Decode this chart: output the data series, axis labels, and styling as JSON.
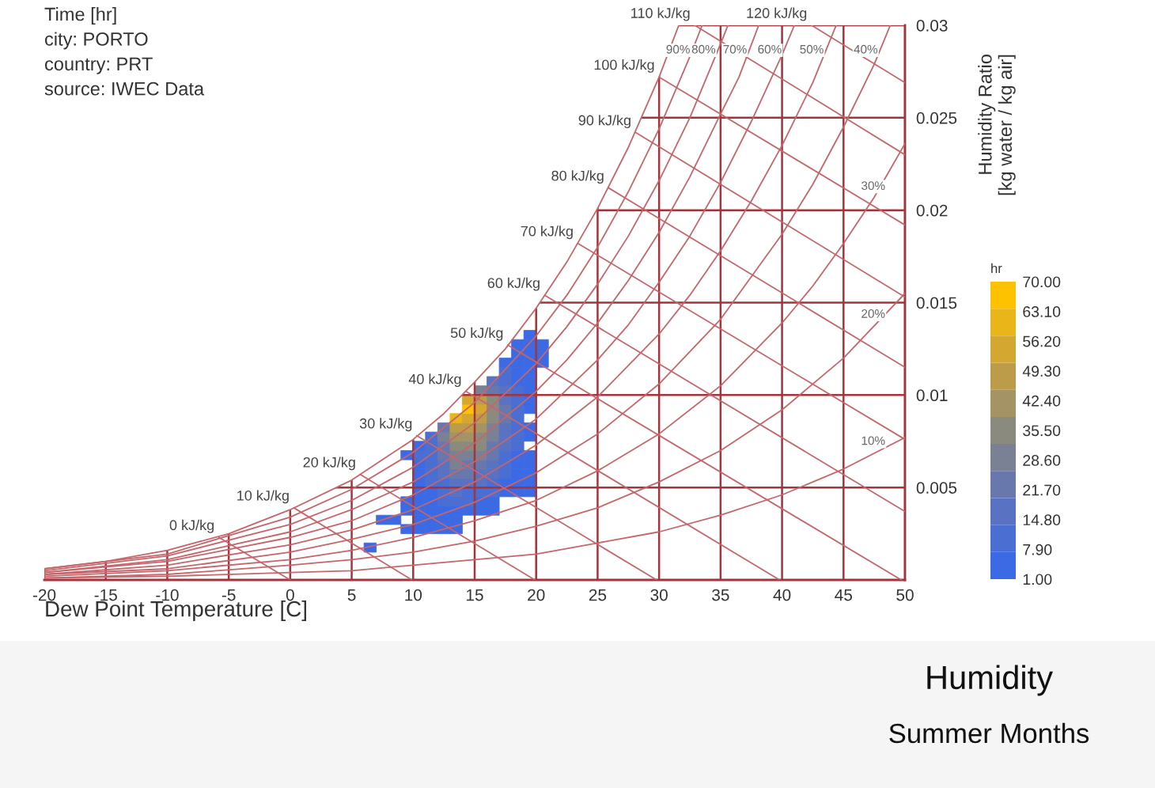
{
  "chart_data": {
    "type": "line",
    "title": "Humidity",
    "subtitle": "Summer Months",
    "xlabel": "Dew Point Temperature [C]",
    "ylabel": "Humidity Ratio\n[kg water / kg air]",
    "clabel": "hr",
    "annotations": [
      "Time [hr]",
      "city: PORTO",
      "country: PRT",
      "source: IWEC Data"
    ],
    "xlim": [
      -20,
      50
    ],
    "xticks": [
      -20,
      -15,
      -10,
      -5,
      0,
      5,
      10,
      15,
      20,
      25,
      30,
      35,
      40,
      45,
      50
    ],
    "ylim": [
      0,
      0.03
    ],
    "yticks": [
      0.005,
      0.01,
      0.015,
      0.02,
      0.025,
      0.03
    ],
    "clim": [
      1,
      70
    ],
    "cticks": [
      {
        "value": 1,
        "label": "1.00"
      },
      {
        "value": 7.9,
        "label": "7.90"
      },
      {
        "value": 14.8,
        "label": "14.80"
      },
      {
        "value": 21.7,
        "label": "21.70"
      },
      {
        "value": 28.6,
        "label": "28.60"
      },
      {
        "value": 35.5,
        "label": "35.50"
      },
      {
        "value": 42.4,
        "label": "42.40"
      },
      {
        "value": 49.3,
        "label": "49.30"
      },
      {
        "value": 56.2,
        "label": "56.20"
      },
      {
        "value": 63.1,
        "label": "63.10"
      },
      {
        "value": 70,
        "label": "70.00"
      }
    ],
    "grid": true,
    "series": [
      {
        "type": "scatter",
        "marker": "square",
        "x": [
          6.5,
          7.5,
          8.5,
          9.5,
          9.5,
          9.5,
          9.5,
          10.5,
          10.5,
          10.5,
          10.5,
          10.5,
          10.5,
          10.5,
          10.5,
          10.5,
          10.5,
          11.5,
          11.5,
          11.5,
          11.5,
          11.5,
          11.5,
          11.5,
          11.5,
          11.5,
          11.5,
          11.5,
          12.5,
          12.5,
          12.5,
          12.5,
          12.5,
          12.5,
          12.5,
          12.5,
          12.5,
          12.5,
          12.5,
          12.5,
          13.5,
          13.5,
          13.5,
          13.5,
          13.5,
          13.5,
          13.5,
          13.5,
          13.5,
          13.5,
          13.5,
          13.5,
          13.5,
          14.5,
          14.5,
          14.5,
          14.5,
          14.5,
          14.5,
          14.5,
          14.5,
          14.5,
          14.5,
          14.5,
          14.5,
          14.5,
          15.5,
          15.5,
          15.5,
          15.5,
          15.5,
          15.5,
          15.5,
          15.5,
          15.5,
          15.5,
          15.5,
          15.5,
          15.5,
          15.5,
          16.5,
          16.5,
          16.5,
          16.5,
          16.5,
          16.5,
          16.5,
          16.5,
          16.5,
          16.5,
          16.5,
          16.5,
          16.5,
          16.5,
          16.5,
          17.5,
          17.5,
          17.5,
          17.5,
          17.5,
          17.5,
          17.5,
          17.5,
          17.5,
          17.5,
          17.5,
          17.5,
          17.5,
          17.5,
          17.5,
          18.5,
          18.5,
          18.5,
          18.5,
          18.5,
          18.5,
          18.5,
          18.5,
          18.5,
          18.5,
          18.5,
          18.5,
          18.5,
          18.5,
          18.5,
          18.5,
          18.5,
          19.5,
          19.5,
          19.5,
          19.5,
          19.5,
          19.5,
          19.5,
          19.5,
          19.5,
          19.5,
          19.5,
          19.5,
          19.5,
          19.5,
          19.5,
          19.5,
          20.5,
          20.5,
          20.5
        ],
        "values": [
          0.00175,
          0.00325,
          0.00325,
          0.00275,
          0.00375,
          0.00425,
          0.00675,
          0.00275,
          0.00325,
          0.00375,
          0.00425,
          0.00475,
          0.00525,
          0.00575,
          0.00625,
          0.00675,
          0.00725,
          0.00275,
          0.00325,
          0.00375,
          0.00425,
          0.00475,
          0.00525,
          0.00575,
          0.00625,
          0.00675,
          0.00725,
          0.00775,
          0.00275,
          0.00325,
          0.00375,
          0.00425,
          0.00475,
          0.00525,
          0.00575,
          0.00625,
          0.00675,
          0.00725,
          0.00775,
          0.00825,
          0.00275,
          0.00325,
          0.00375,
          0.00425,
          0.00475,
          0.00525,
          0.00575,
          0.00625,
          0.00675,
          0.00725,
          0.00775,
          0.00825,
          0.00875,
          0.00375,
          0.00425,
          0.00475,
          0.00525,
          0.00575,
          0.00625,
          0.00675,
          0.00725,
          0.00775,
          0.00825,
          0.00875,
          0.00925,
          0.00975,
          0.00375,
          0.00425,
          0.00475,
          0.00525,
          0.00575,
          0.00625,
          0.00675,
          0.00725,
          0.00775,
          0.00825,
          0.00875,
          0.00925,
          0.00975,
          0.01025,
          0.00375,
          0.00425,
          0.00475,
          0.00525,
          0.00575,
          0.00625,
          0.00675,
          0.00725,
          0.00775,
          0.00825,
          0.00875,
          0.00925,
          0.00975,
          0.01025,
          0.01075,
          0.00475,
          0.00525,
          0.00575,
          0.00625,
          0.00675,
          0.00725,
          0.00775,
          0.00825,
          0.00875,
          0.00925,
          0.00975,
          0.01025,
          0.01075,
          0.01125,
          0.01175,
          0.00475,
          0.00525,
          0.00575,
          0.00625,
          0.00675,
          0.00725,
          0.00775,
          0.00825,
          0.00875,
          0.00925,
          0.00975,
          0.01025,
          0.01075,
          0.01125,
          0.01175,
          0.01225,
          0.01275,
          0.00475,
          0.00525,
          0.00575,
          0.00625,
          0.00675,
          0.00775,
          0.00825,
          0.00925,
          0.00975,
          0.01025,
          0.01075,
          0.01125,
          0.01175,
          0.01225,
          0.01275,
          0.01325,
          0.01175,
          0.01225,
          0.01275
        ],
        "cvalues": [
          2,
          2,
          2,
          2,
          2,
          2,
          3,
          2,
          3,
          3,
          4,
          5,
          6,
          6,
          7,
          8,
          6,
          3,
          3,
          4,
          5,
          7,
          8,
          9,
          11,
          12,
          13,
          9,
          3,
          4,
          6,
          8,
          10,
          13,
          16,
          19,
          22,
          26,
          30,
          22,
          2,
          4,
          7,
          10,
          14,
          18,
          22,
          27,
          31,
          36,
          42,
          50,
          58,
          5,
          9,
          13,
          17,
          21,
          26,
          31,
          36,
          41,
          47,
          56,
          70,
          52,
          4,
          7,
          11,
          15,
          19,
          24,
          29,
          33,
          37,
          41,
          46,
          52,
          48,
          30,
          3,
          5,
          8,
          11,
          14,
          17,
          21,
          25,
          28,
          31,
          33,
          35,
          33,
          26,
          18,
          4,
          6,
          8,
          10,
          12,
          14,
          16,
          18,
          20,
          20,
          18,
          16,
          13,
          9,
          5,
          3,
          4,
          5,
          6,
          7,
          8,
          9,
          10,
          10,
          10,
          9,
          8,
          7,
          5,
          4,
          3,
          2,
          2,
          2,
          3,
          3,
          4,
          4,
          4,
          5,
          4,
          4,
          3,
          3,
          2,
          2,
          2,
          1,
          2,
          2,
          1
        ],
        "colors": [
          "#3c6ae4",
          "#3c6ae4",
          "#3c6ae4",
          "#3c6ae4",
          "#3c6ae4",
          "#3c6ae4",
          "#3c6ae4",
          "#3c6ae4",
          "#3c6ae4",
          "#3c6ae4",
          "#3c6ae4",
          "#3c6ae4",
          "#3c6ae4",
          "#3c6ae4",
          "#3c6ae4",
          "#4a6ed2",
          "#3c6ae4",
          "#3c6ae4",
          "#3c6ae4",
          "#3c6ae4",
          "#3c6ae4",
          "#3c6ae4",
          "#4a6ed2",
          "#4a6ed2",
          "#4a6ed2",
          "#4a6ed2",
          "#4a6ed2",
          "#4a6ed2",
          "#3c6ae4",
          "#3c6ae4",
          "#3c6ae4",
          "#4a6ed2",
          "#4a6ed2",
          "#4a6ed2",
          "#5972c1",
          "#5972c1",
          "#6978ac",
          "#6978ac",
          "#7a8195",
          "#6978ac",
          "#3c6ae4",
          "#3c6ae4",
          "#3c6ae4",
          "#4a6ed2",
          "#5972c1",
          "#5972c1",
          "#6978ac",
          "#7a8195",
          "#7a8195",
          "#8b8a7e",
          "#a49364",
          "#bd9c49",
          "#e9b518",
          "#3c6ae4",
          "#4a6ed2",
          "#4a6ed2",
          "#5972c1",
          "#6978ac",
          "#6978ac",
          "#7a8195",
          "#8b8a7e",
          "#a49364",
          "#bd9c49",
          "#d4a830",
          "#ffc200",
          "#d4a830",
          "#3c6ae4",
          "#3c6ae4",
          "#4a6ed2",
          "#5972c1",
          "#5972c1",
          "#6978ac",
          "#7a8195",
          "#8b8a7e",
          "#8b8a7e",
          "#a49364",
          "#bd9c49",
          "#d4a830",
          "#bd9c49",
          "#7a8195",
          "#3c6ae4",
          "#3c6ae4",
          "#4a6ed2",
          "#4a6ed2",
          "#5972c1",
          "#5972c1",
          "#6978ac",
          "#6978ac",
          "#7a8195",
          "#7a8195",
          "#8b8a7e",
          "#8b8a7e",
          "#8b8a7e",
          "#6978ac",
          "#5972c1",
          "#3c6ae4",
          "#3c6ae4",
          "#4a6ed2",
          "#4a6ed2",
          "#4a6ed2",
          "#5972c1",
          "#5972c1",
          "#5972c1",
          "#6978ac",
          "#6978ac",
          "#5972c1",
          "#5972c1",
          "#4a6ed2",
          "#4a6ed2",
          "#3c6ae4",
          "#3c6ae4",
          "#3c6ae4",
          "#3c6ae4",
          "#3c6ae4",
          "#3c6ae4",
          "#4a6ed2",
          "#4a6ed2",
          "#4a6ed2",
          "#4a6ed2",
          "#4a6ed2",
          "#4a6ed2",
          "#4a6ed2",
          "#3c6ae4",
          "#3c6ae4",
          "#3c6ae4",
          "#3c6ae4",
          "#3c6ae4",
          "#3c6ae4",
          "#3c6ae4",
          "#3c6ae4",
          "#3c6ae4",
          "#3c6ae4",
          "#3c6ae4",
          "#3c6ae4",
          "#3c6ae4",
          "#3c6ae4",
          "#3c6ae4",
          "#3c6ae4",
          "#3c6ae4",
          "#3c6ae4",
          "#3c6ae4",
          "#3c6ae4",
          "#3c6ae4",
          "#3c6ae4",
          "#3c6ae4",
          "#3c6ae4"
        ]
      },
      {
        "color": "#c4666b",
        "x": [
          -20,
          -15,
          -10,
          -5,
          0,
          5,
          7.5,
          10,
          12.5,
          15,
          17.5,
          20,
          22.5,
          25,
          27.5,
          30,
          31.6
        ],
        "values": [
          0.0006,
          0.001,
          0.0016,
          0.0025,
          0.0038,
          0.0054,
          0.0065,
          0.0076,
          0.009,
          0.0107,
          0.0125,
          0.0147,
          0.0172,
          0.0201,
          0.0234,
          0.0272,
          0.03
        ]
      },
      {
        "name": "90%",
        "color": "#c4666b",
        "x": [
          -20,
          -10,
          0,
          5,
          10,
          15,
          20,
          22.5,
          25,
          27.5,
          30,
          32.5,
          33.5
        ],
        "values": [
          0.0006,
          0.0014,
          0.0034,
          0.0049,
          0.0069,
          0.0096,
          0.0132,
          0.0154,
          0.018,
          0.021,
          0.0244,
          0.0283,
          0.03
        ]
      },
      {
        "name": "80%",
        "color": "#c4666b",
        "x": [
          -20,
          -10,
          0,
          5,
          10,
          15,
          20,
          22.5,
          25,
          27.5,
          30,
          32.5,
          35,
          35.6
        ],
        "values": [
          0.0005,
          0.0013,
          0.003,
          0.0043,
          0.0061,
          0.0085,
          0.0117,
          0.0137,
          0.016,
          0.0186,
          0.0216,
          0.025,
          0.029,
          0.03
        ]
      },
      {
        "name": "70%",
        "color": "#c4666b",
        "x": [
          -20,
          -10,
          0,
          5,
          10,
          15,
          20,
          22.5,
          25,
          27.5,
          30,
          32.5,
          35,
          36.5,
          38.1
        ],
        "values": [
          0.0004,
          0.0011,
          0.0026,
          0.0038,
          0.0053,
          0.0074,
          0.0102,
          0.0119,
          0.0139,
          0.0162,
          0.0188,
          0.0218,
          0.0252,
          0.0272,
          0.03
        ]
      },
      {
        "name": "60%",
        "color": "#c4666b",
        "x": [
          -20,
          -10,
          0,
          5,
          10,
          15,
          20,
          25,
          27.5,
          30,
          32.5,
          35,
          37.5,
          40,
          41
        ],
        "values": [
          0.0004,
          0.001,
          0.0023,
          0.0032,
          0.0046,
          0.0064,
          0.0087,
          0.0119,
          0.0138,
          0.0161,
          0.0186,
          0.0215,
          0.0248,
          0.0284,
          0.03
        ]
      },
      {
        "name": "50%",
        "color": "#c4666b",
        "x": [
          -20,
          -10,
          0,
          5,
          10,
          15,
          20,
          25,
          30,
          32.5,
          35,
          37.5,
          40,
          42.5,
          44.4
        ],
        "values": [
          0.0003,
          0.0008,
          0.0019,
          0.0027,
          0.0038,
          0.0053,
          0.0073,
          0.0099,
          0.0133,
          0.0154,
          0.0178,
          0.0205,
          0.0235,
          0.0269,
          0.03
        ]
      },
      {
        "name": "40%",
        "color": "#c4666b",
        "x": [
          -20,
          -10,
          0,
          5,
          10,
          15,
          20,
          25,
          30,
          35,
          40,
          42.5,
          45,
          47.5,
          48.8
        ],
        "values": [
          0.0003,
          0.0006,
          0.0015,
          0.0022,
          0.003,
          0.0042,
          0.0058,
          0.0079,
          0.0106,
          0.0141,
          0.0187,
          0.0214,
          0.0245,
          0.0279,
          0.03
        ]
      },
      {
        "name": "30%",
        "color": "#c4666b",
        "x": [
          -20,
          -10,
          0,
          5,
          10,
          15,
          20,
          25,
          30,
          35,
          40,
          42.5,
          45,
          47.5,
          50
        ],
        "values": [
          0.0002,
          0.0005,
          0.0011,
          0.0016,
          0.0023,
          0.0032,
          0.0043,
          0.0059,
          0.0079,
          0.0105,
          0.0139,
          0.0159,
          0.0182,
          0.0207,
          0.0236
        ]
      },
      {
        "name": "20%",
        "color": "#c4666b",
        "x": [
          -20,
          -10,
          0,
          5,
          10,
          15,
          20,
          25,
          30,
          35,
          40,
          45,
          50
        ],
        "values": [
          0.0001,
          0.0003,
          0.0008,
          0.0011,
          0.0015,
          0.0021,
          0.0029,
          0.0039,
          0.0053,
          0.007,
          0.0092,
          0.012,
          0.0155
        ]
      },
      {
        "name": "10%",
        "color": "#c4666b",
        "x": [
          -20,
          -10,
          0,
          5,
          10,
          15,
          20,
          25,
          30,
          35,
          40,
          45,
          50
        ],
        "values": [
          0.0001,
          0.0002,
          0.0004,
          0.0005,
          0.0008,
          0.0011,
          0.0014,
          0.002,
          0.0026,
          0.0035,
          0.0046,
          0.006,
          0.0077
        ]
      },
      {
        "name": "0 kJ/kg",
        "color": "#c4666b",
        "x": [
          -5.8,
          0
        ],
        "values": [
          0.0023,
          0
        ]
      },
      {
        "name": "10 kJ/kg",
        "color": "#c4666b",
        "x": [
          0.3,
          9.9
        ],
        "values": [
          0.0039,
          0
        ]
      },
      {
        "name": "20 kJ/kg",
        "color": "#c4666b",
        "x": [
          5.7,
          19.9
        ],
        "values": [
          0.0057,
          0
        ]
      },
      {
        "name": "30 kJ/kg",
        "color": "#c4666b",
        "x": [
          10.3,
          29.8
        ],
        "values": [
          0.0078,
          0
        ]
      },
      {
        "name": "40 kJ/kg",
        "color": "#c4666b",
        "x": [
          14.3,
          39.8
        ],
        "values": [
          0.0102,
          0
        ]
      },
      {
        "name": "50 kJ/kg",
        "color": "#c4666b",
        "x": [
          17.7,
          49.7
        ],
        "values": [
          0.0127,
          0
        ]
      },
      {
        "name": "60 kJ/kg",
        "color": "#c4666b",
        "x": [
          20.7,
          50
        ],
        "values": [
          0.0154,
          0.0037
        ]
      },
      {
        "name": "70 kJ/kg",
        "color": "#c4666b",
        "x": [
          23.4,
          50
        ],
        "values": [
          0.0182,
          0.0076
        ]
      },
      {
        "name": "80 kJ/kg",
        "color": "#c4666b",
        "x": [
          25.9,
          50
        ],
        "values": [
          0.0212,
          0.0115
        ]
      },
      {
        "name": "90 kJ/kg",
        "color": "#c4666b",
        "x": [
          28.1,
          50
        ],
        "values": [
          0.0242,
          0.0153
        ]
      },
      {
        "name": "100 kJ/kg",
        "color": "#c4666b",
        "x": [
          30,
          50
        ],
        "values": [
          0.0272,
          0.0192
        ]
      },
      {
        "name": "110 kJ/kg",
        "color": "#c4666b",
        "x": [
          32.9,
          50
        ],
        "values": [
          0.03,
          0.023
        ]
      },
      {
        "name": "120 kJ/kg",
        "color": "#c4666b",
        "x": [
          42.4,
          50
        ],
        "values": [
          0.03,
          0.0269
        ]
      }
    ]
  }
}
